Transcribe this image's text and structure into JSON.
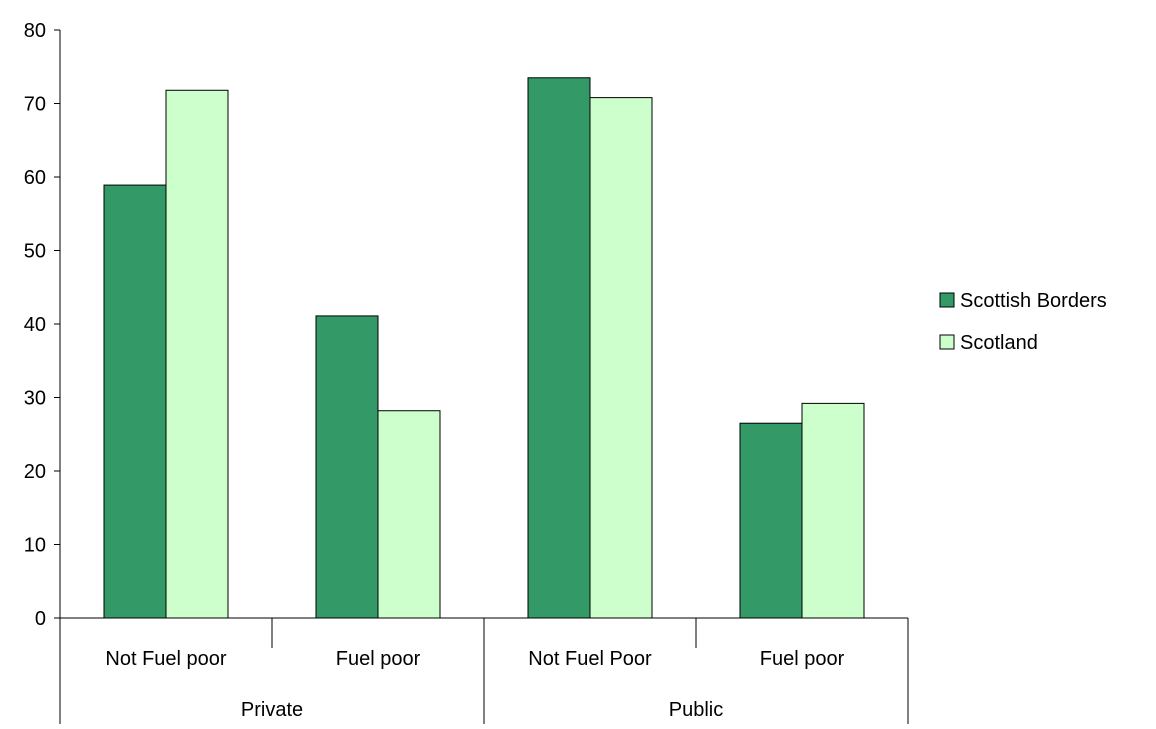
{
  "chart_data": {
    "type": "bar",
    "title": "",
    "xlabel": "",
    "ylabel": "",
    "ylim": [
      0,
      80
    ],
    "yticks": [
      0,
      10,
      20,
      30,
      40,
      50,
      60,
      70,
      80
    ],
    "grid": false,
    "legend_position": "right",
    "groups": [
      {
        "label": "Private",
        "categories": [
          "Not Fuel poor",
          "Fuel poor"
        ]
      },
      {
        "label": "Public",
        "categories": [
          "Not Fuel Poor",
          "Fuel poor"
        ]
      }
    ],
    "categories": [
      "Not Fuel poor",
      "Fuel poor",
      "Not Fuel Poor",
      "Fuel poor"
    ],
    "series": [
      {
        "name": "Scottish Borders",
        "color": "#339966",
        "values": [
          58.9,
          41.1,
          73.5,
          26.5
        ]
      },
      {
        "name": "Scotland",
        "color": "#ccffcc",
        "values": [
          71.8,
          28.2,
          70.8,
          29.2
        ]
      }
    ]
  }
}
